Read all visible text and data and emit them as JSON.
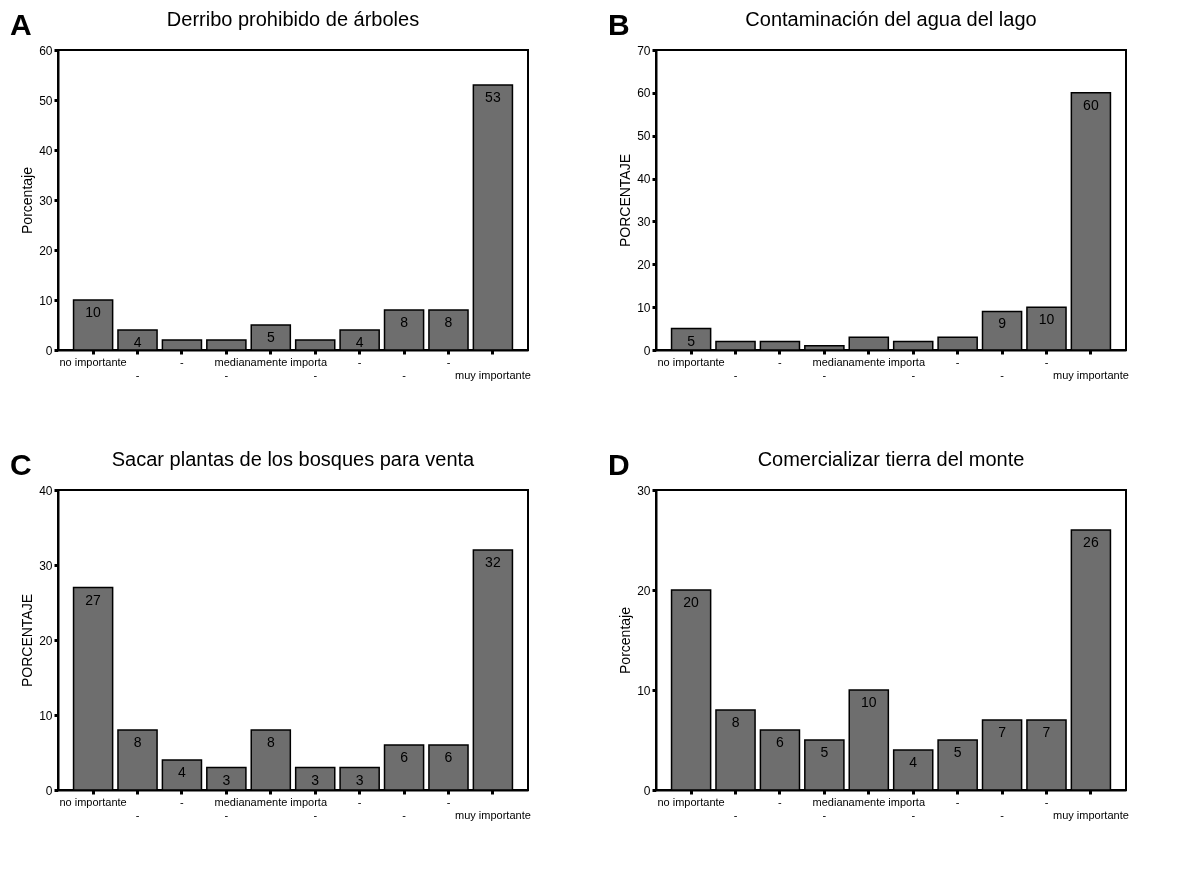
{
  "chart_data": [
    {
      "type": "bar",
      "title": "Derribo prohibido de árboles",
      "ylabel": "Porcentaje",
      "annotations": [
        "A"
      ],
      "categories": [
        "no importante",
        "-",
        "-",
        "-",
        "medianamente importa",
        "-",
        "-",
        "-",
        "-",
        "muy importante"
      ],
      "values": [
        10,
        4,
        2,
        2,
        5,
        2,
        4,
        8,
        8,
        53
      ],
      "value_labels": [
        "10",
        "4",
        null,
        null,
        "5",
        null,
        "4",
        "8",
        "8",
        "53"
      ],
      "color": "#6e6e6e",
      "ylim": [
        0,
        60
      ],
      "yticks": [
        0,
        10,
        20,
        30,
        40,
        50,
        60
      ],
      "grid": false
    },
    {
      "type": "bar",
      "title": "Contaminación del agua del lago",
      "ylabel": "PORCENTAJE",
      "annotations": [
        "B"
      ],
      "categories": [
        "no importante",
        "-",
        "-",
        "-",
        "medianamente importa",
        "-",
        "-",
        "-",
        "-",
        "muy importante"
      ],
      "values": [
        5,
        2,
        2,
        1,
        3,
        2,
        3,
        9,
        10,
        60
      ],
      "value_labels": [
        "5",
        null,
        null,
        null,
        null,
        null,
        null,
        "9",
        "10",
        "60"
      ],
      "color": "#6e6e6e",
      "ylim": [
        0,
        70
      ],
      "yticks": [
        0,
        10,
        20,
        30,
        40,
        50,
        60,
        70
      ],
      "grid": false
    },
    {
      "type": "bar",
      "title": "Sacar plantas de los bosques para venta",
      "ylabel": "PORCENTAJE",
      "annotations": [
        "C"
      ],
      "categories": [
        "no importante",
        "-",
        "-",
        "-",
        "medianamente importa",
        "-",
        "-",
        "-",
        "-",
        "muy importante"
      ],
      "values": [
        27,
        8,
        4,
        3,
        8,
        3,
        3,
        6,
        6,
        32
      ],
      "data_labels": true,
      "color": "#6e6e6e",
      "ylim": [
        0,
        40
      ],
      "yticks": [
        0,
        10,
        20,
        30,
        40
      ],
      "grid": false
    },
    {
      "type": "bar",
      "title": "Comercializar tierra del monte",
      "ylabel": "Porcentaje",
      "annotations": [
        "D"
      ],
      "categories": [
        "no importante",
        "-",
        "-",
        "-",
        "medianamente importa",
        "-",
        "-",
        "-",
        "-",
        "muy importante"
      ],
      "values": [
        20,
        8,
        6,
        5,
        10,
        4,
        5,
        7,
        7,
        26
      ],
      "data_labels": true,
      "color": "#6e6e6e",
      "ylim": [
        0,
        30
      ],
      "yticks": [
        0,
        10,
        20,
        30
      ],
      "grid": false
    }
  ]
}
